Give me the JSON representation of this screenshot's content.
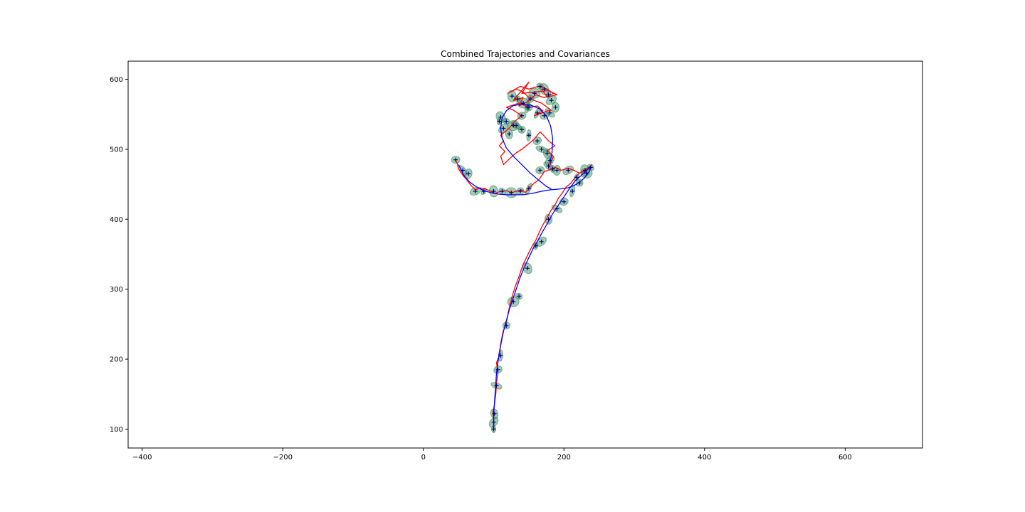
{
  "chart_data": {
    "type": "line",
    "title": "Combined Trajectories and Covariances",
    "xlabel": "",
    "ylabel": "",
    "xlim": [
      -420,
      710
    ],
    "ylim": [
      73,
      626
    ],
    "xticks": [
      -400,
      -200,
      0,
      200,
      400,
      600
    ],
    "yticks": [
      100,
      200,
      300,
      400,
      500,
      600
    ],
    "grid": false,
    "legend": "none",
    "colors": {
      "truth": "#0000ff",
      "estimate": "#ff0000",
      "covariance": "#2e8b57",
      "markers": "#000080"
    },
    "series": [
      {
        "role": "truth",
        "x": [
          100,
          100,
          100,
          101,
          102,
          103,
          104,
          106,
          108,
          111,
          114,
          118,
          122,
          127,
          132,
          137,
          143,
          150,
          157,
          163,
          170,
          177,
          184,
          192,
          200,
          208,
          216,
          224,
          232,
          238,
          236,
          228,
          218,
          206,
          192,
          180,
          168,
          155,
          142,
          130,
          118,
          106,
          96,
          86,
          76,
          66,
          58,
          50
        ],
        "y": [
          100,
          110,
          122,
          135,
          150,
          165,
          180,
          195,
          210,
          225,
          240,
          255,
          270,
          285,
          300,
          315,
          330,
          345,
          360,
          370,
          383,
          395,
          408,
          420,
          432,
          444,
          455,
          462,
          470,
          475,
          468,
          458,
          450,
          445,
          443,
          442,
          440,
          437,
          435,
          435,
          435,
          436,
          438,
          441,
          446,
          453,
          462,
          478
        ]
      },
      {
        "role": "truth-loop",
        "x": [
          182,
          175,
          165,
          152,
          140,
          128,
          118,
          112,
          110,
          112,
          118,
          127,
          140,
          153,
          165,
          175,
          181,
          184,
          183,
          180
        ],
        "y": [
          443,
          447,
          455,
          466,
          478,
          490,
          502,
          516,
          530,
          545,
          555,
          562,
          565,
          563,
          558,
          548,
          533,
          515,
          495,
          480
        ]
      },
      {
        "role": "estimate",
        "x": [
          100,
          100,
          99,
          101,
          103,
          104,
          106,
          104,
          108,
          110,
          113,
          118,
          121,
          124,
          127,
          131,
          136,
          141,
          146,
          150,
          155,
          160,
          165,
          170,
          176,
          181,
          188,
          192,
          198,
          203,
          210,
          216,
          222,
          229,
          235,
          240,
          232,
          222,
          214,
          206,
          196,
          188,
          180,
          172,
          164,
          158,
          150,
          145,
          140,
          132,
          125,
          118,
          110,
          102,
          94,
          86,
          80,
          74,
          68,
          62,
          56,
          50,
          48,
          46
        ],
        "y": [
          100,
          112,
          125,
          134,
          150,
          165,
          182,
          195,
          205,
          222,
          238,
          252,
          268,
          281,
          292,
          305,
          318,
          333,
          344,
          352,
          362,
          370,
          382,
          392,
          402,
          412,
          422,
          430,
          438,
          446,
          452,
          460,
          466,
          470,
          474,
          478,
          470,
          466,
          470,
          473,
          470,
          474,
          471,
          468,
          456,
          452,
          444,
          438,
          442,
          440,
          438,
          441,
          440,
          437,
          441,
          444,
          445,
          442,
          448,
          456,
          463,
          472,
          480,
          484
        ]
      },
      {
        "role": "estimate-loop",
        "x": [
          178,
          185,
          176,
          187,
          178,
          171,
          166,
          158,
          150,
          140,
          132,
          124,
          118,
          114,
          110,
          116,
          108,
          114,
          110,
          122,
          130,
          140,
          128,
          118,
          136,
          150,
          162,
          170,
          158,
          174,
          182,
          168,
          152,
          142,
          132,
          120,
          138,
          150,
          164,
          176,
          185,
          172,
          160,
          148,
          136,
          142,
          128,
          150,
          140,
          178,
          190,
          176,
          168
        ],
        "y": [
          472,
          490,
          498,
          505,
          512,
          520,
          525,
          515,
          508,
          500,
          495,
          488,
          482,
          478,
          490,
          497,
          505,
          512,
          520,
          530,
          540,
          548,
          556,
          560,
          566,
          560,
          562,
          555,
          548,
          554,
          556,
          566,
          572,
          582,
          586,
          580,
          590,
          586,
          590,
          586,
          580,
          574,
          578,
          568,
          562,
          574,
          570,
          596,
          580,
          584,
          578,
          575,
          586
        ]
      },
      {
        "role": "markers",
        "x": [
          100,
          100,
          101,
          104,
          106,
          110,
          118,
          128,
          136,
          148,
          160,
          168,
          178,
          190,
          200,
          212,
          222,
          232,
          238,
          230,
          218,
          206,
          190,
          178,
          166,
          150,
          138,
          125,
          112,
          100,
          86,
          74,
          64,
          56,
          46
        ],
        "y": [
          100,
          110,
          122,
          162,
          185,
          205,
          248,
          282,
          290,
          330,
          362,
          368,
          400,
          415,
          425,
          440,
          452,
          466,
          474,
          470,
          460,
          470,
          470,
          476,
          470,
          444,
          440,
          438,
          440,
          440,
          440,
          440,
          465,
          470,
          485
        ]
      },
      {
        "role": "markers-loop",
        "x": [
          184,
          180,
          176,
          168,
          162,
          150,
          140,
          128,
          118,
          110,
          108,
          114,
          122,
          132,
          140,
          148,
          152,
          158,
          166,
          172,
          178,
          182,
          188,
          180,
          172,
          162,
          150,
          142,
          134,
          126
        ],
        "y": [
          472,
          484,
          494,
          500,
          512,
          520,
          528,
          534,
          540,
          546,
          540,
          530,
          522,
          534,
          548,
          560,
          572,
          580,
          590,
          586,
          578,
          570,
          560,
          552,
          548,
          552,
          560,
          566,
          572,
          576
        ]
      }
    ]
  }
}
